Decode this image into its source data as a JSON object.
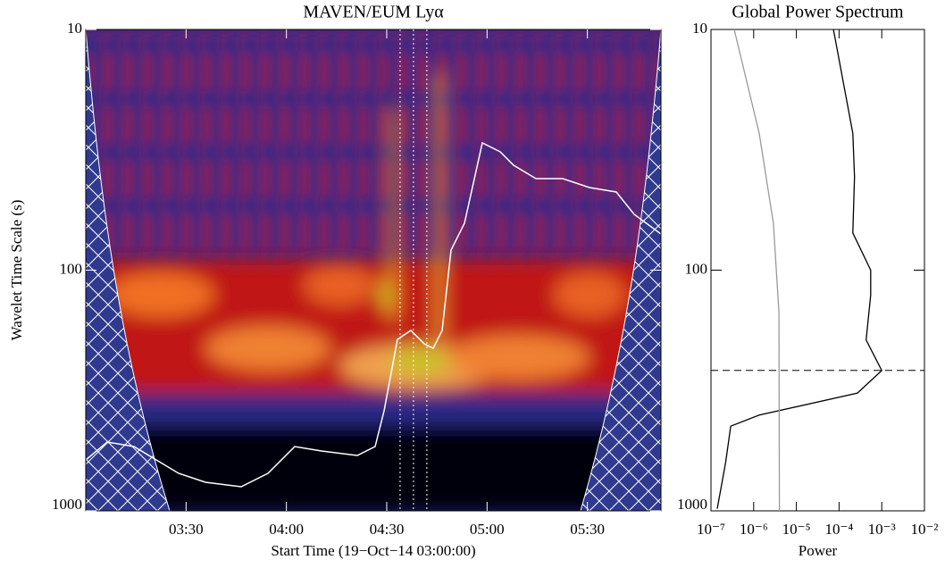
{
  "chart_data": [
    {
      "type": "heatmap",
      "title": "MAVEN/EUM Lyα",
      "x_label": "Start Time (19−Oct−14 03:00:00)",
      "y_label": "Wavelet Time Scale (s)",
      "xlim": [
        0,
        172
      ],
      "xticks": [
        {
          "value": 30,
          "label": "03:30"
        },
        {
          "value": 60,
          "label": "04:00"
        },
        {
          "value": 90,
          "label": "04:30"
        },
        {
          "value": 120,
          "label": "05:00"
        },
        {
          "value": 150,
          "label": "05:30"
        }
      ],
      "ylim": [
        10,
        1000
      ],
      "yticks": [
        10,
        100,
        1000
      ],
      "log_y": true,
      "vlines": [
        94,
        98,
        102
      ]
    },
    {
      "type": "line",
      "title": "Global Power Spectrum",
      "x_label": "Power",
      "xlim": [
        1e-07,
        0.01
      ],
      "xticks": [
        {
          "value": 1e-07,
          "label": "10⁻⁷"
        },
        {
          "value": 1e-06,
          "label": "10⁻⁶"
        },
        {
          "value": 1e-05,
          "label": "10⁻⁵"
        },
        {
          "value": 0.0001,
          "label": "10⁻⁴"
        },
        {
          "value": 0.001,
          "label": "10⁻³"
        },
        {
          "value": 0.01,
          "label": "10⁻²"
        }
      ],
      "ylim": [
        10,
        1000
      ],
      "yticks": [
        10,
        100,
        1000
      ],
      "log_x": true,
      "log_y": true,
      "hline": 261,
      "series": [
        {
          "color": "#000000",
          "x": [
            7.4e-05,
            0.00021,
            0.00023,
            0.00021,
            0.00055,
            0.00055,
            0.00043,
            0.001,
            0.00027,
            1.35e-06,
            2.9e-07,
            2.2e-07,
            1.4e-07
          ],
          "y": [
            10,
            27,
            41,
            70,
            100,
            127,
            195,
            261,
            324,
            400,
            445,
            630,
            980
          ]
        },
        {
          "color": "#999999",
          "x": [
            3.5e-07,
            1.35e-06,
            2.9e-06,
            3.9e-06,
            4e-06
          ],
          "y": [
            10,
            27,
            64,
            150,
            1000
          ]
        }
      ]
    }
  ]
}
